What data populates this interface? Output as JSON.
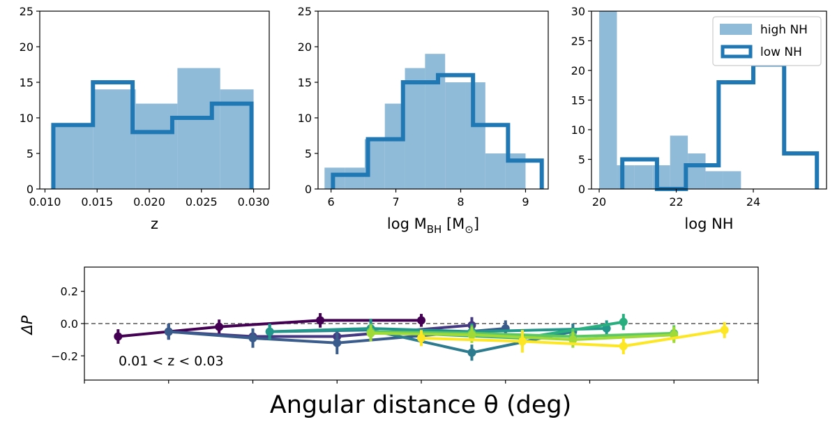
{
  "colors": {
    "fill": "#8fbbd9",
    "step": "#1f77b4",
    "zero_line": "#555555",
    "viridis": [
      "#440154",
      "#453882",
      "#3a5c8c",
      "#2c7b8e",
      "#21968b",
      "#29af7f",
      "#5dc863",
      "#a0da39",
      "#fde725"
    ]
  },
  "chart_data": [
    {
      "type": "histogram",
      "xlabel": "z",
      "xlim": [
        0.0095,
        0.0315
      ],
      "ylim": [
        0,
        25
      ],
      "xticks": [
        0.01,
        0.015,
        0.02,
        0.025,
        0.03
      ],
      "xtick_labels": [
        "0.010",
        "0.015",
        "0.020",
        "0.025",
        "0.030"
      ],
      "yticks": [
        0,
        5,
        10,
        15,
        20,
        25
      ],
      "ytick_labels": [
        "0",
        "5",
        "10",
        "15",
        "20",
        "25"
      ],
      "high_nh": {
        "label": "high NH",
        "edges": [
          0.0106,
          0.0146,
          0.0187,
          0.0227,
          0.0268,
          0.03
        ],
        "counts": [
          9,
          14,
          12,
          17,
          14
        ]
      },
      "low_nh": {
        "label": "low NH",
        "edges": [
          0.0108,
          0.0146,
          0.0184,
          0.0222,
          0.026,
          0.0298
        ],
        "counts": [
          9,
          15,
          8,
          10,
          12
        ]
      }
    },
    {
      "type": "histogram",
      "xlabel_main": "log M",
      "xlabel_sub": "BH",
      "xlabel_tail": " [M",
      "xlabel_sub2": "⊙",
      "xlabel_end": "]",
      "xlim": [
        5.8,
        9.35
      ],
      "ylim": [
        0,
        25
      ],
      "xticks": [
        6,
        7,
        8,
        9
      ],
      "xtick_labels": [
        "6",
        "7",
        "8",
        "9"
      ],
      "yticks": [
        0,
        5,
        10,
        15,
        20,
        25
      ],
      "ytick_labels": [
        "0",
        "5",
        "10",
        "15",
        "20",
        "25"
      ],
      "high_nh": {
        "label": "high NH",
        "edges": [
          5.9,
          6.21,
          6.52,
          6.83,
          7.14,
          7.45,
          7.76,
          8.07,
          8.38,
          8.69,
          9.0
        ],
        "counts": [
          3,
          3,
          7,
          12,
          17,
          19,
          15,
          15,
          5,
          5
        ]
      },
      "low_nh": {
        "label": "low NH",
        "edges": [
          6.03,
          6.57,
          7.11,
          7.65,
          8.19,
          8.73,
          9.25
        ],
        "counts": [
          2,
          7,
          15,
          16,
          9,
          4
        ]
      }
    },
    {
      "type": "histogram",
      "xlabel": "log NH",
      "xlim": [
        19.8,
        25.9
      ],
      "ylim": [
        0,
        30
      ],
      "xticks": [
        20,
        22,
        24
      ],
      "xtick_labels": [
        "20",
        "22",
        "24"
      ],
      "yticks": [
        0,
        5,
        10,
        15,
        20,
        25,
        30
      ],
      "ytick_labels": [
        "0",
        "5",
        "10",
        "15",
        "20",
        "25",
        "30"
      ],
      "high_nh": {
        "label": "high NH",
        "edges": [
          20.0,
          20.46,
          20.92,
          21.38,
          21.84,
          22.3,
          22.76,
          23.22,
          23.68
        ],
        "counts": [
          30,
          4,
          4,
          4,
          9,
          6,
          3,
          3
        ]
      },
      "low_nh": {
        "label": "low NH",
        "edges": [
          20.6,
          21.5,
          22.25,
          23.1,
          24.0,
          24.8,
          25.65
        ],
        "counts": [
          5,
          0,
          4,
          18,
          21,
          6
        ]
      },
      "legend": [
        "high NH",
        "low NH"
      ]
    },
    {
      "type": "line",
      "xlabel": "Angular distance θ (deg)",
      "ylabel": "ΔP",
      "annotation": "0.01 < z < 0.03",
      "xlim": [
        0,
        40
      ],
      "ylim": [
        -0.35,
        0.35
      ],
      "yticks": [
        -0.2,
        0.0,
        0.2
      ],
      "ytick_labels": [
        "−0.2",
        "0.0",
        "0.2"
      ],
      "xticks": [
        0,
        5,
        10,
        15,
        20,
        25,
        30,
        35,
        40
      ],
      "series": [
        {
          "x": [
            2,
            5,
            8,
            14,
            20
          ],
          "y": [
            -0.08,
            -0.05,
            -0.02,
            0.02,
            0.02
          ],
          "err": [
            0.045,
            0.045,
            0.045,
            0.045,
            0.04
          ]
        },
        {
          "x": [
            5,
            10,
            15,
            23
          ],
          "y": [
            -0.05,
            -0.08,
            -0.08,
            -0.01
          ],
          "err": [
            0.05,
            0.05,
            0.05,
            0.05
          ]
        },
        {
          "x": [
            5,
            10,
            15,
            25
          ],
          "y": [
            -0.05,
            -0.09,
            -0.12,
            -0.03
          ],
          "err": [
            0.05,
            0.06,
            0.07,
            0.05
          ]
        },
        {
          "x": [
            11,
            17,
            23,
            29
          ],
          "y": [
            -0.05,
            -0.04,
            -0.18,
            -0.05
          ],
          "err": [
            0.05,
            0.06,
            0.05,
            0.05
          ]
        },
        {
          "x": [
            11,
            17,
            23,
            31
          ],
          "y": [
            -0.05,
            -0.03,
            -0.05,
            -0.03
          ],
          "err": [
            0.05,
            0.06,
            0.05,
            0.05
          ]
        },
        {
          "x": [
            17,
            26,
            32
          ],
          "y": [
            -0.05,
            -0.09,
            0.01
          ],
          "err": [
            0.05,
            0.05,
            0.05
          ]
        },
        {
          "x": [
            17,
            23,
            29,
            35
          ],
          "y": [
            -0.05,
            -0.06,
            -0.08,
            -0.06
          ],
          "err": [
            0.05,
            0.05,
            0.05,
            0.05
          ]
        },
        {
          "x": [
            17,
            23,
            29,
            35
          ],
          "y": [
            -0.06,
            -0.07,
            -0.1,
            -0.07
          ],
          "err": [
            0.05,
            0.05,
            0.05,
            0.05
          ]
        },
        {
          "x": [
            20,
            26,
            32,
            38
          ],
          "y": [
            -0.09,
            -0.11,
            -0.14,
            -0.04
          ],
          "err": [
            0.05,
            0.07,
            0.05,
            0.05
          ]
        }
      ]
    }
  ]
}
